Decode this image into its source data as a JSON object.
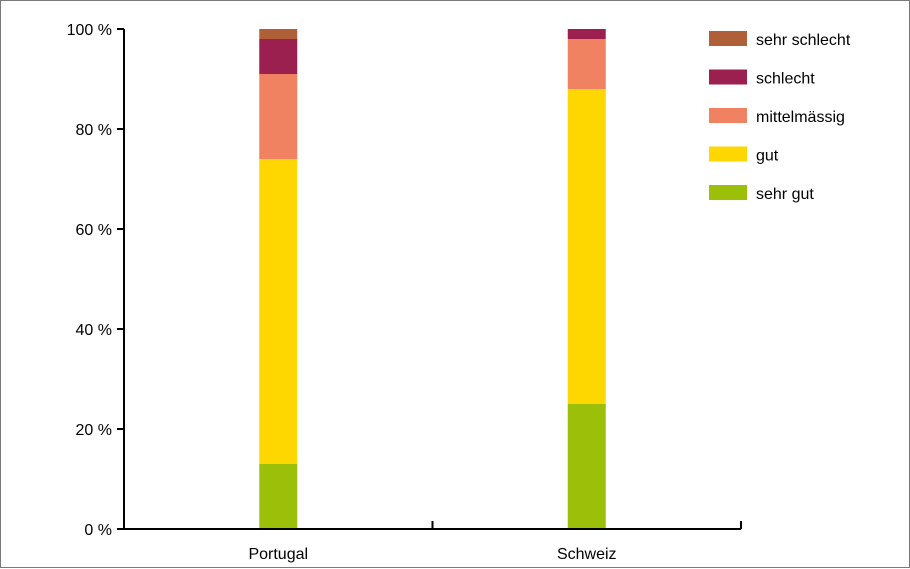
{
  "chart_data": {
    "type": "bar",
    "stacked": true,
    "title": "",
    "xlabel": "",
    "ylabel": "",
    "categories": [
      "Portugal",
      "Schweiz"
    ],
    "ylim": [
      0,
      100
    ],
    "yticks": [
      0,
      20,
      40,
      60,
      80,
      100
    ],
    "ytick_labels": [
      "0 %",
      "20 %",
      "40 %",
      "60 %",
      "80 %",
      "100 %"
    ],
    "grid": false,
    "legend_position": "top-right",
    "series": [
      {
        "name": "sehr gut",
        "color": "#9cbf0a",
        "values": [
          13,
          25
        ]
      },
      {
        "name": "gut",
        "color": "#ffd700",
        "values": [
          61,
          63
        ]
      },
      {
        "name": "mittelmässig",
        "color": "#f08262",
        "values": [
          17,
          10
        ]
      },
      {
        "name": "schlecht",
        "color": "#9b2050",
        "values": [
          7,
          2
        ]
      },
      {
        "name": "sehr schlecht",
        "color": "#b06038",
        "values": [
          2,
          0
        ]
      }
    ]
  }
}
